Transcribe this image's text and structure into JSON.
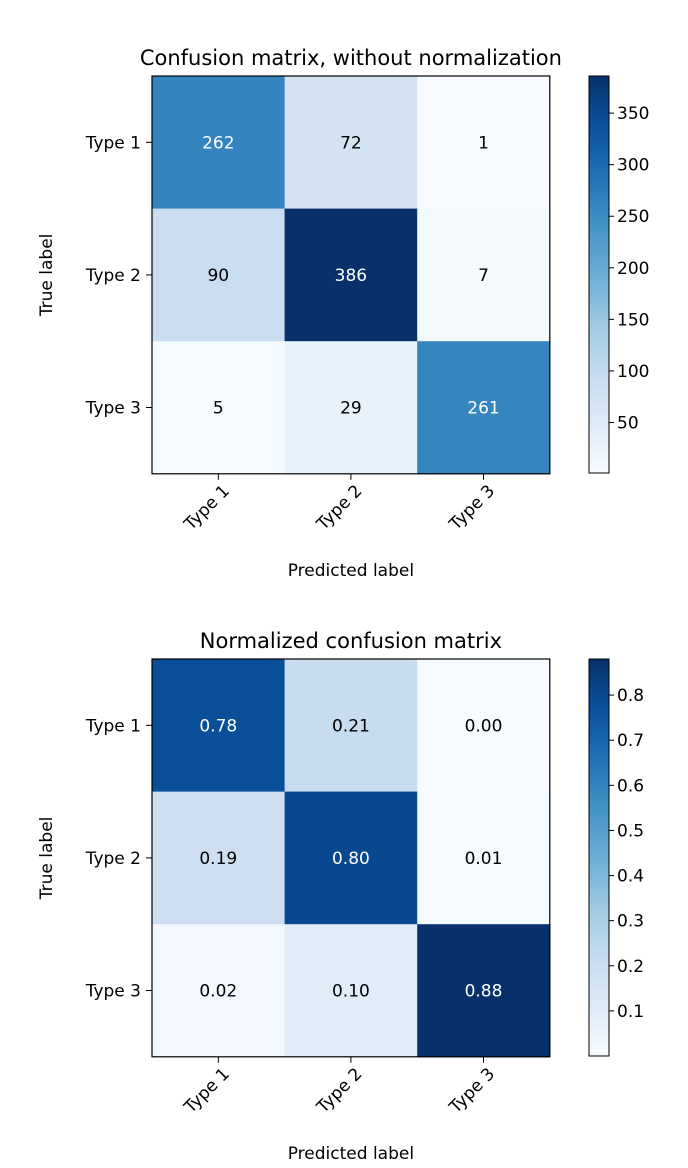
{
  "chart_data": [
    {
      "type": "heatmap",
      "title": "Confusion matrix, without normalization",
      "xlabel": "Predicted label",
      "ylabel": "True label",
      "x_categories": [
        "Type 1",
        "Type 2",
        "Type 3"
      ],
      "y_categories": [
        "Type 1",
        "Type 2",
        "Type 3"
      ],
      "values": [
        [
          262,
          72,
          1
        ],
        [
          90,
          386,
          7
        ],
        [
          5,
          29,
          261
        ]
      ],
      "value_format": "int",
      "colormap": "Blues",
      "colorbar": {
        "range": [
          1,
          386
        ],
        "ticks": [
          50,
          100,
          150,
          200,
          250,
          300,
          350
        ],
        "tick_labels": [
          "50",
          "100",
          "150",
          "200",
          "250",
          "300",
          "350"
        ]
      },
      "grid": false
    },
    {
      "type": "heatmap",
      "title": "Normalized confusion matrix",
      "xlabel": "Predicted label",
      "ylabel": "True label",
      "x_categories": [
        "Type 1",
        "Type 2",
        "Type 3"
      ],
      "y_categories": [
        "Type 1",
        "Type 2",
        "Type 3"
      ],
      "values": [
        [
          0.78,
          0.21,
          0.0
        ],
        [
          0.19,
          0.8,
          0.01
        ],
        [
          0.02,
          0.1,
          0.88
        ]
      ],
      "value_format": "2f",
      "colormap": "Blues",
      "colorbar": {
        "range": [
          0.0,
          0.88
        ],
        "ticks": [
          0.1,
          0.2,
          0.3,
          0.4,
          0.5,
          0.6,
          0.7,
          0.8
        ],
        "tick_labels": [
          "0.1",
          "0.2",
          "0.3",
          "0.4",
          "0.5",
          "0.6",
          "0.7",
          "0.8"
        ]
      },
      "grid": false
    }
  ]
}
